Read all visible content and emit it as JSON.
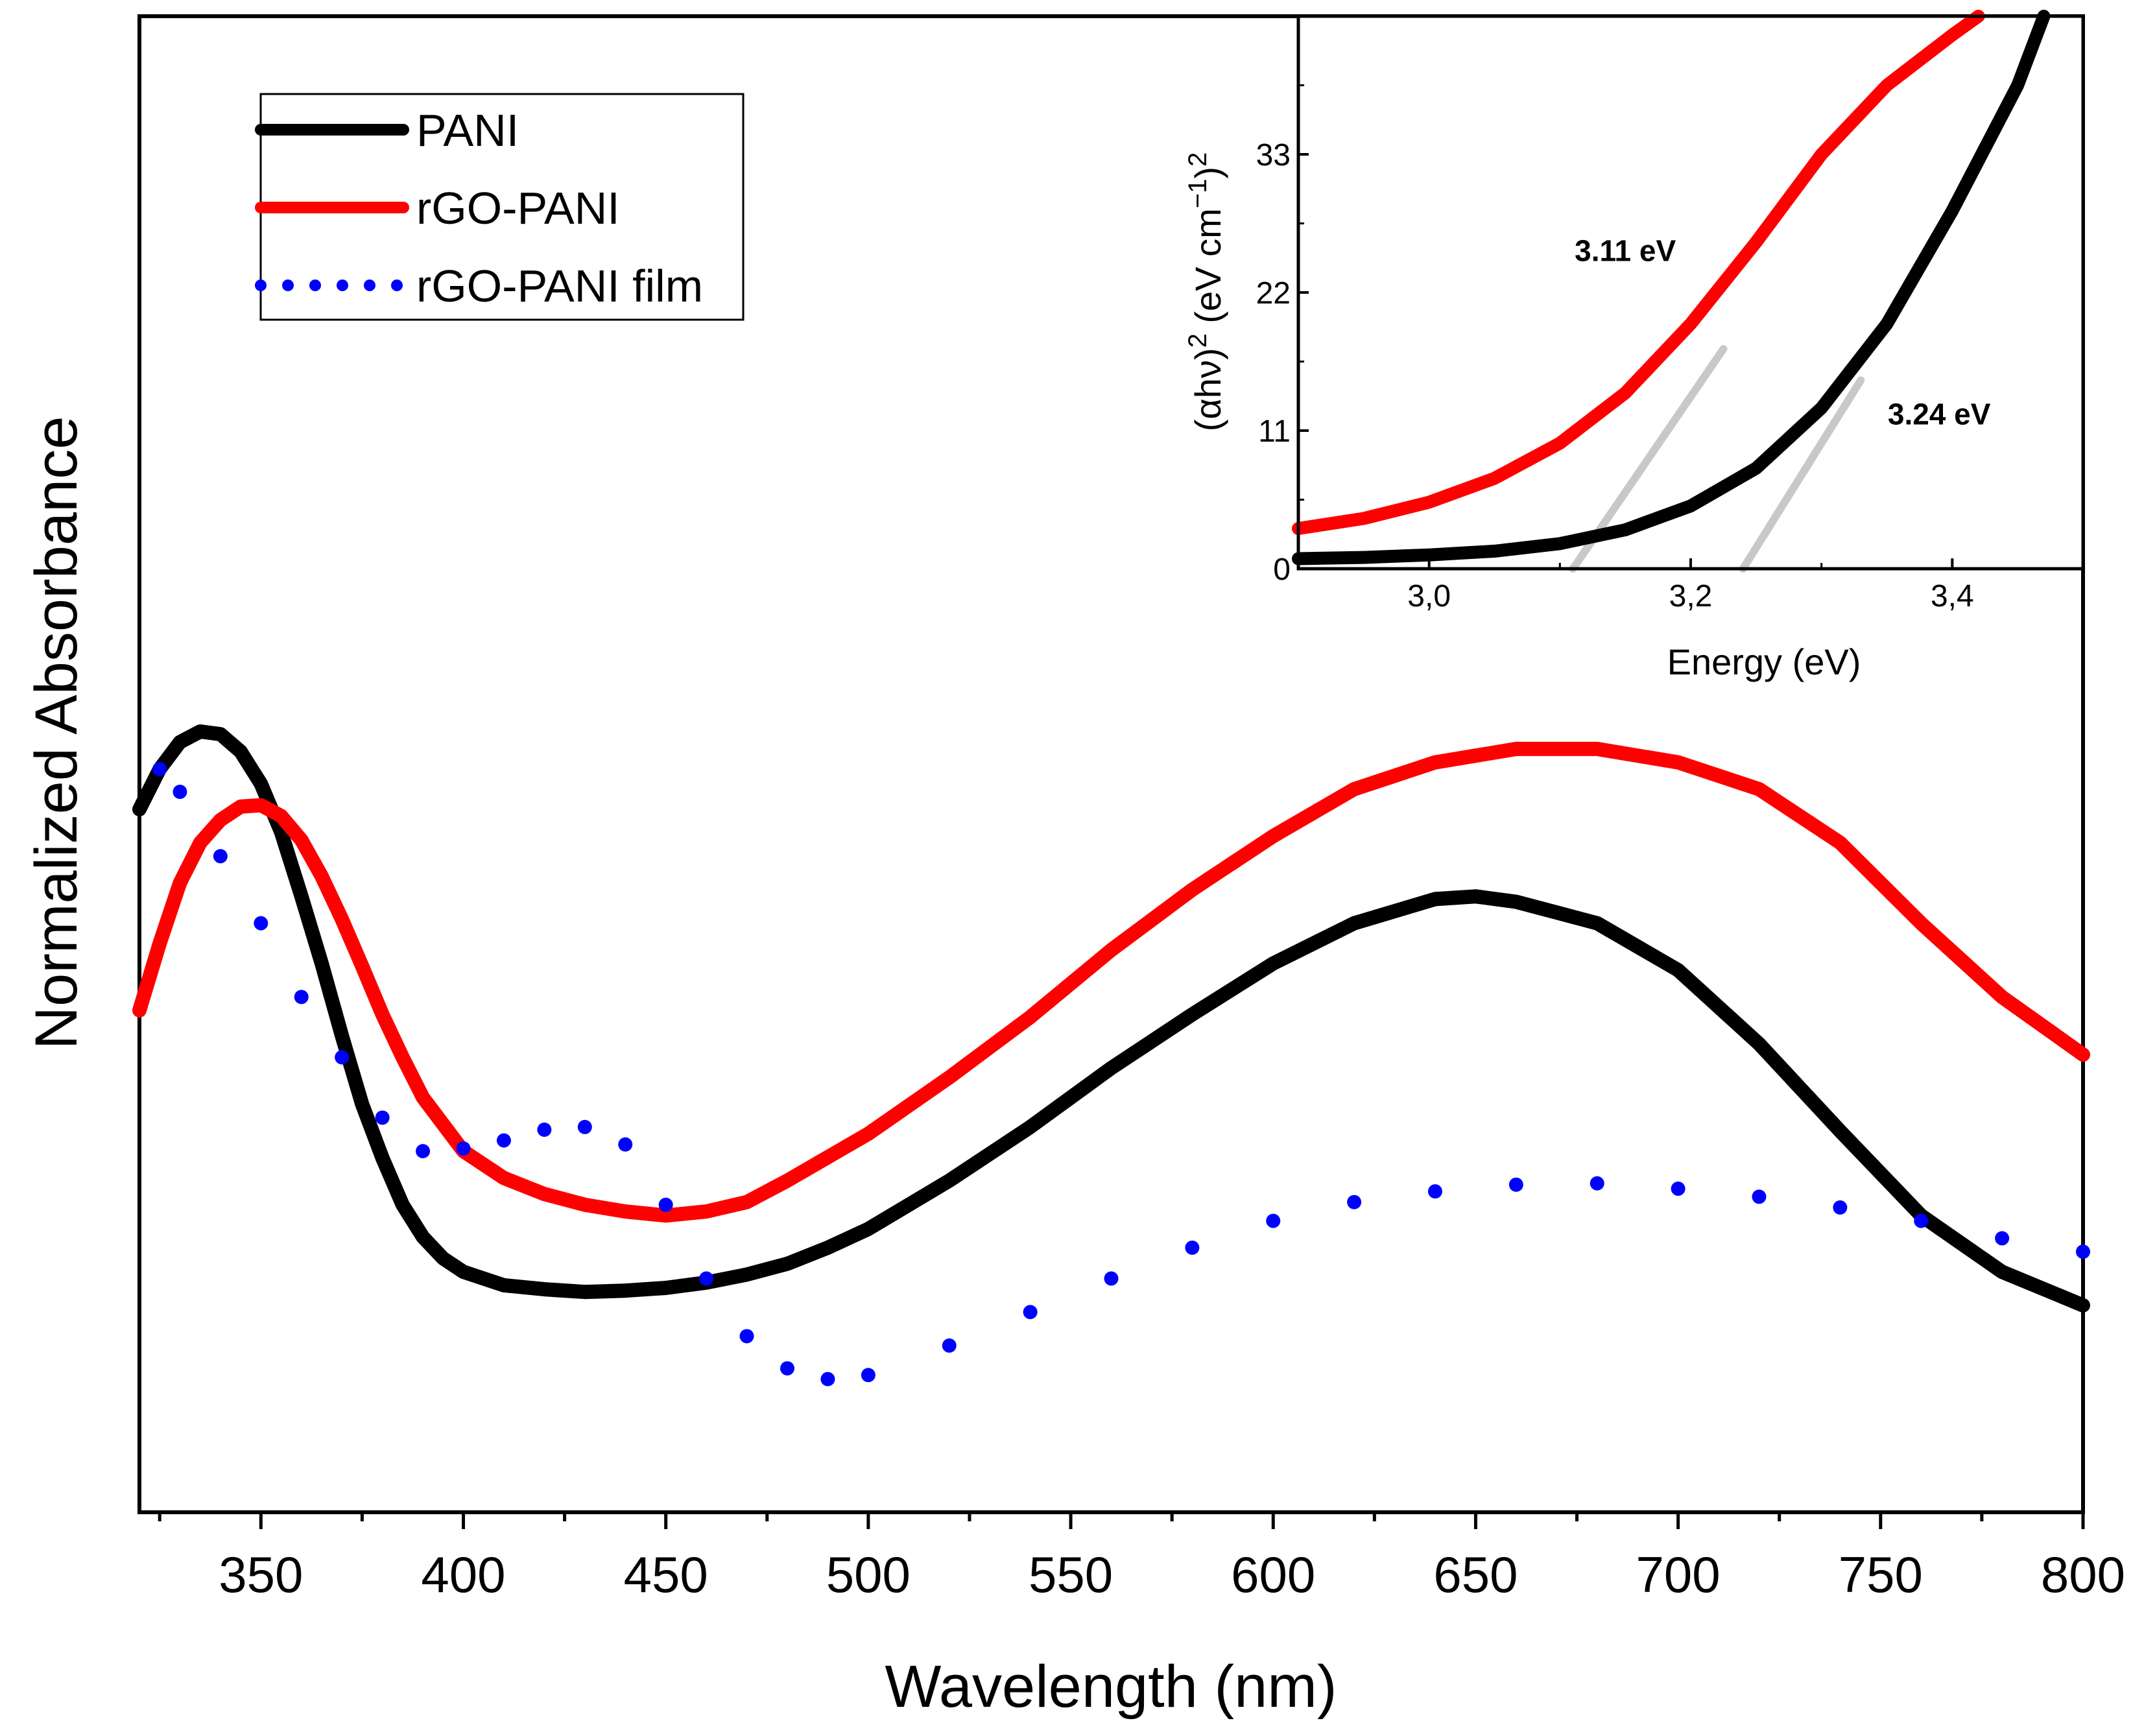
{
  "chart_data": [
    {
      "type": "line",
      "title": "",
      "xlabel": "Wavelength (nm)",
      "ylabel": "Normalized Absorbance",
      "xlim": [
        320,
        800
      ],
      "ylim": [
        0,
        1
      ],
      "show_y_ticks": false,
      "x_major_ticks": [
        350,
        400,
        450,
        500,
        550,
        600,
        650,
        700,
        750,
        800
      ],
      "x_tick_labels": [
        "350",
        "400",
        "450",
        "500",
        "550",
        "600",
        "650",
        "700",
        "750",
        "800"
      ],
      "legend": {
        "placement": "top-left",
        "entries": [
          "PANI",
          "rGO-PANI",
          "rGO-PANI film"
        ]
      },
      "series": [
        {
          "name": "PANI",
          "color": "#000000",
          "style": "solid",
          "x": [
            320,
            325,
            330,
            335,
            340,
            345,
            350,
            355,
            360,
            365,
            370,
            375,
            380,
            385,
            390,
            395,
            400,
            410,
            420,
            430,
            440,
            450,
            460,
            470,
            480,
            490,
            500,
            520,
            540,
            560,
            580,
            600,
            620,
            640,
            650,
            660,
            680,
            700,
            720,
            740,
            760,
            780,
            800
          ],
          "y": [
            0.475,
            0.505,
            0.525,
            0.533,
            0.531,
            0.518,
            0.494,
            0.458,
            0.41,
            0.36,
            0.306,
            0.255,
            0.215,
            0.18,
            0.156,
            0.14,
            0.13,
            0.12,
            0.117,
            0.115,
            0.116,
            0.118,
            0.122,
            0.128,
            0.136,
            0.148,
            0.162,
            0.198,
            0.238,
            0.282,
            0.322,
            0.36,
            0.39,
            0.408,
            0.41,
            0.406,
            0.39,
            0.355,
            0.3,
            0.235,
            0.172,
            0.13,
            0.105
          ]
        },
        {
          "name": "rGO-PANI",
          "color": "#ff0000",
          "style": "solid",
          "x": [
            320,
            325,
            330,
            335,
            340,
            345,
            350,
            355,
            360,
            365,
            370,
            375,
            380,
            385,
            390,
            400,
            410,
            420,
            430,
            440,
            450,
            460,
            470,
            480,
            500,
            520,
            540,
            560,
            580,
            600,
            620,
            640,
            660,
            680,
            700,
            720,
            740,
            760,
            780,
            800
          ],
          "y": [
            0.325,
            0.375,
            0.42,
            0.45,
            0.467,
            0.477,
            0.478,
            0.47,
            0.452,
            0.425,
            0.393,
            0.358,
            0.322,
            0.29,
            0.26,
            0.22,
            0.2,
            0.188,
            0.18,
            0.175,
            0.172,
            0.175,
            0.182,
            0.198,
            0.233,
            0.275,
            0.32,
            0.37,
            0.415,
            0.455,
            0.49,
            0.51,
            0.52,
            0.52,
            0.51,
            0.49,
            0.45,
            0.39,
            0.335,
            0.292
          ]
        },
        {
          "name": "rGO-PANI film",
          "color": "#0000ff",
          "style": "dotted",
          "x": [
            325,
            330,
            340,
            350,
            360,
            370,
            380,
            390,
            400,
            410,
            420,
            430,
            440,
            450,
            460,
            470,
            480,
            490,
            500,
            520,
            540,
            560,
            580,
            600,
            620,
            640,
            660,
            680,
            700,
            720,
            740,
            760,
            780,
            800
          ],
          "y": [
            0.505,
            0.488,
            0.44,
            0.39,
            0.335,
            0.29,
            0.245,
            0.22,
            0.222,
            0.228,
            0.236,
            0.238,
            0.225,
            0.18,
            0.125,
            0.082,
            0.058,
            0.05,
            0.053,
            0.075,
            0.1,
            0.125,
            0.148,
            0.168,
            0.182,
            0.19,
            0.195,
            0.196,
            0.192,
            0.186,
            0.178,
            0.168,
            0.155,
            0.145
          ]
        }
      ]
    },
    {
      "type": "line",
      "title": "",
      "xlabel": "Energy (eV)",
      "ylabel": "(αhν)² (eV cm⁻¹)²",
      "ylabel_parts": {
        "base": "(αhν)",
        "sup1": "2",
        "unit_open": " (eV cm",
        "sup2": "−1",
        "unit_close": ")",
        "sup3": "2"
      },
      "xlim": [
        2.9,
        3.5
      ],
      "ylim": [
        0,
        44
      ],
      "x_major_ticks": [
        3.0,
        3.2,
        3.4
      ],
      "x_tick_labels": [
        "3,0",
        "3,2",
        "3,4"
      ],
      "y_major_ticks": [
        0,
        11,
        22,
        33
      ],
      "y_tick_labels": [
        "0",
        "11",
        "22",
        "33"
      ],
      "annotations": [
        {
          "text": "3.11 eV",
          "x": 3.15,
          "y": 24.5
        },
        {
          "text": "3.24 eV",
          "x": 3.39,
          "y": 11.5
        }
      ],
      "series": [
        {
          "name": "rGO-PANI",
          "color": "#ff0000",
          "style": "solid",
          "x": [
            2.9,
            2.95,
            3.0,
            3.05,
            3.1,
            3.15,
            3.2,
            3.25,
            3.3,
            3.35,
            3.4,
            3.42
          ],
          "y": [
            3.2,
            4.0,
            5.3,
            7.2,
            10.0,
            14.0,
            19.5,
            26.0,
            33.0,
            38.5,
            42.5,
            44.0
          ]
        },
        {
          "name": "PANI",
          "color": "#000000",
          "style": "solid",
          "x": [
            2.9,
            2.95,
            3.0,
            3.05,
            3.1,
            3.15,
            3.2,
            3.25,
            3.3,
            3.35,
            3.4,
            3.45,
            3.47
          ],
          "y": [
            0.8,
            0.9,
            1.1,
            1.4,
            2.0,
            3.1,
            5.0,
            8.0,
            12.8,
            19.5,
            28.5,
            38.5,
            44.0
          ]
        },
        {
          "name": "fit 3.11 eV",
          "color": "#c8c8c8",
          "style": "solid",
          "x": [
            3.11,
            3.225
          ],
          "y": [
            0,
            17.5
          ]
        },
        {
          "name": "fit 3.24 eV",
          "color": "#c8c8c8",
          "style": "solid",
          "x": [
            3.24,
            3.33
          ],
          "y": [
            0,
            15.0
          ]
        }
      ]
    }
  ]
}
